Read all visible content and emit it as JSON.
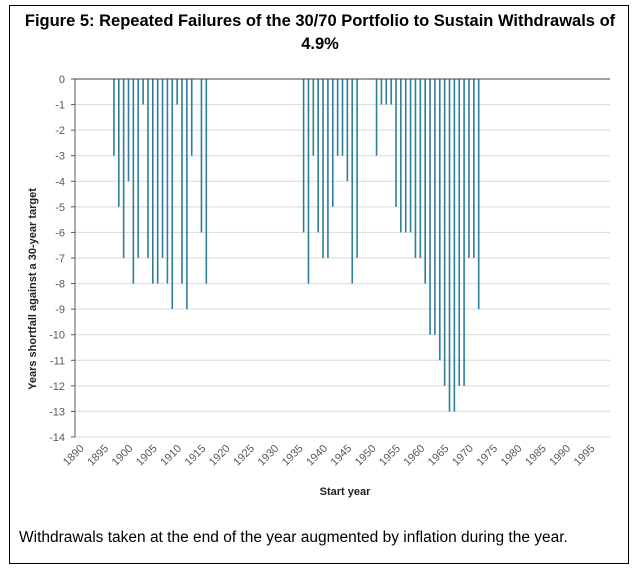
{
  "chart_data": {
    "type": "bar",
    "title": "Figure 5: Repeated Failures of the 30/70 Portfolio to Sustain Withdrawals of 4.9%",
    "xlabel": "Start year",
    "ylabel": "Years shortfall against a 30-year target",
    "xlim": [
      1888,
      1998
    ],
    "ylim": [
      -14,
      0
    ],
    "yticks": [
      0,
      -1,
      -2,
      -3,
      -4,
      -5,
      -6,
      -7,
      -8,
      -9,
      -10,
      -11,
      -12,
      -13,
      -14
    ],
    "xticks": [
      1890,
      1895,
      1900,
      1905,
      1910,
      1915,
      1920,
      1925,
      1930,
      1935,
      1940,
      1945,
      1950,
      1955,
      1960,
      1965,
      1970,
      1975,
      1980,
      1985,
      1990,
      1995
    ],
    "grid": "horizontal",
    "bar_color": "#2E7D9A",
    "x": [
      1896,
      1897,
      1898,
      1899,
      1900,
      1901,
      1902,
      1903,
      1904,
      1905,
      1906,
      1907,
      1908,
      1909,
      1910,
      1911,
      1912,
      1913,
      1914,
      1915,
      1916,
      1935,
      1936,
      1937,
      1938,
      1939,
      1940,
      1941,
      1942,
      1943,
      1944,
      1945,
      1946,
      1950,
      1951,
      1952,
      1953,
      1954,
      1955,
      1956,
      1957,
      1958,
      1959,
      1960,
      1961,
      1962,
      1963,
      1964,
      1965,
      1966,
      1967,
      1968,
      1969,
      1970,
      1971
    ],
    "values": [
      -3,
      -5,
      -7,
      -4,
      -8,
      -7,
      -1,
      -7,
      -8,
      -8,
      -7,
      -8,
      -9,
      -1,
      -8,
      -9,
      -3,
      0,
      -6,
      -8,
      0,
      -6,
      -8,
      -3,
      -6,
      -7,
      -7,
      -5,
      -3,
      -3,
      -4,
      -8,
      -7,
      -3,
      -1,
      -1,
      -1,
      -5,
      -6,
      -6,
      -6,
      -7,
      -7,
      -8,
      -10,
      -10,
      -11,
      -12,
      -13,
      -13,
      -12,
      -12,
      -7,
      -7,
      -9
    ]
  },
  "caption": "Withdrawals taken at the end of the year augmented by inflation during the year."
}
